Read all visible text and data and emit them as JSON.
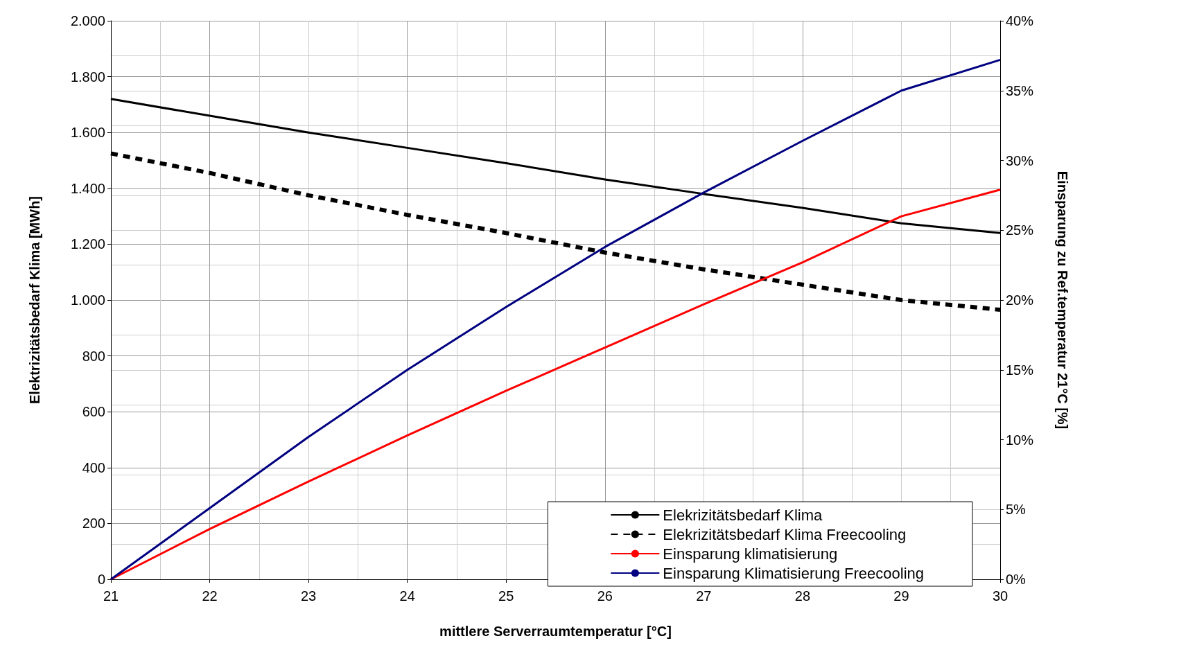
{
  "chart_data": {
    "type": "line",
    "xlabel": "mittlere Serverraumtemperatur [°C]",
    "ylabel": "Elektrizitätsbedarf Klima [MWh]",
    "y2label": "Einsparung zu Ref.temperatur 21°C [%]",
    "x": [
      21,
      22,
      23,
      24,
      25,
      26,
      27,
      28,
      29,
      30
    ],
    "series": [
      {
        "name": "Elekrizitätsbedarf Klima",
        "color": "#000000",
        "line_style": "solid",
        "values": [
          1720,
          1660,
          1600,
          1545,
          1490,
          1432,
          1380,
          1330,
          1275,
          1240
        ]
      },
      {
        "name": "Elekrizitätsbedarf Klima Freecooling",
        "color": "#000000",
        "line_style": "dashed",
        "values": [
          1525,
          1455,
          1375,
          1305,
          1240,
          1170,
          1110,
          1055,
          1000,
          965
        ]
      },
      {
        "name": "Einsparung klimatisierung",
        "color": "#ff0000",
        "line_style": "solid",
        "axis": "y2",
        "values": [
          0,
          3.6,
          7.0,
          10.3,
          13.5,
          16.6,
          19.7,
          22.7,
          26.0,
          27.9
        ]
      },
      {
        "name": "Einsparung Klimatisierung Freecooling",
        "color": "#000080",
        "line_style": "solid",
        "axis": "y2",
        "values": [
          0,
          5.1,
          10.2,
          15.0,
          19.5,
          23.8,
          27.7,
          31.4,
          35.0,
          37.2
        ]
      }
    ],
    "xlim": [
      21,
      30
    ],
    "xticks": [
      21,
      22,
      23,
      24,
      25,
      26,
      27,
      28,
      29,
      30
    ],
    "ylim": [
      0,
      2000
    ],
    "yticks": [
      0,
      200,
      400,
      600,
      800,
      {
        "value": 1000,
        "label": "1.000"
      },
      {
        "value": 1200,
        "label": "1.200"
      },
      {
        "value": 1400,
        "label": "1.400"
      },
      {
        "value": 1600,
        "label": "1.600"
      },
      {
        "value": 1800,
        "label": "1.800"
      },
      {
        "value": 2000,
        "label": "2.000"
      }
    ],
    "y2lim": [
      0,
      40
    ],
    "y2ticks": [
      {
        "value": 0,
        "label": "0%"
      },
      {
        "value": 5,
        "label": "5%"
      },
      {
        "value": 10,
        "label": "10%"
      },
      {
        "value": 15,
        "label": "15%"
      },
      {
        "value": 20,
        "label": "20%"
      },
      {
        "value": 25,
        "label": "25%"
      },
      {
        "value": 30,
        "label": "30%"
      },
      {
        "value": 35,
        "label": "35%"
      },
      {
        "value": 40,
        "label": "40%"
      }
    ],
    "grid": true,
    "legend": "bottom right",
    "marker": "none"
  }
}
